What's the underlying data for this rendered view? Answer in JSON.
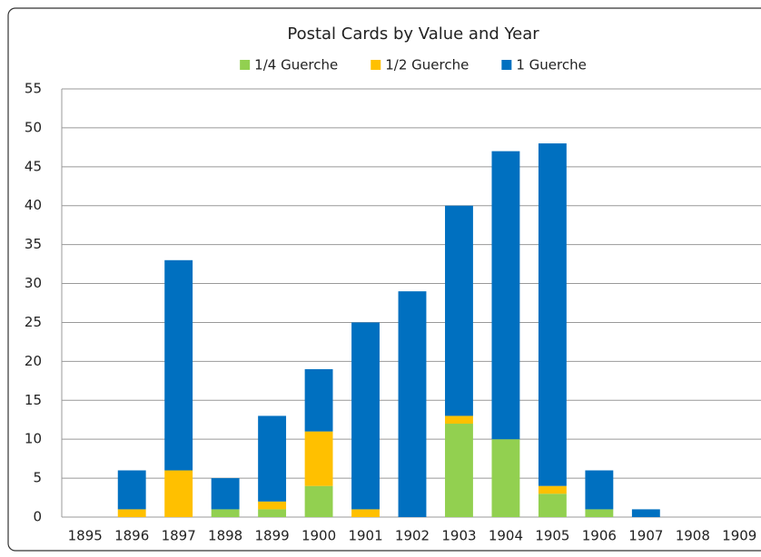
{
  "chart_data": {
    "type": "bar",
    "stacked": true,
    "title": "Postal Cards by Value and Year",
    "categories": [
      "1895",
      "1896",
      "1897",
      "1898",
      "1899",
      "1900",
      "1901",
      "1902",
      "1903",
      "1904",
      "1905",
      "1906",
      "1907",
      "1908",
      "1909"
    ],
    "series": [
      {
        "name": "1/4 Guerche",
        "color": "#92d050",
        "values": [
          0,
          0,
          0,
          1,
          1,
          4,
          0,
          0,
          12,
          10,
          3,
          1,
          0,
          0,
          0
        ]
      },
      {
        "name": "1/2 Guerche",
        "color": "#ffc000",
        "values": [
          0,
          1,
          6,
          0,
          1,
          7,
          1,
          0,
          1,
          0,
          1,
          0,
          0,
          0,
          0
        ]
      },
      {
        "name": "1 Guerche",
        "color": "#0070c0",
        "values": [
          0,
          5,
          27,
          4,
          11,
          8,
          24,
          29,
          27,
          37,
          44,
          5,
          1,
          0,
          0
        ]
      }
    ],
    "ylim": [
      0,
      55
    ],
    "yticks": [
      0,
      5,
      10,
      15,
      20,
      25,
      30,
      35,
      40,
      45,
      50,
      55
    ],
    "grid": true,
    "legend": "top"
  }
}
